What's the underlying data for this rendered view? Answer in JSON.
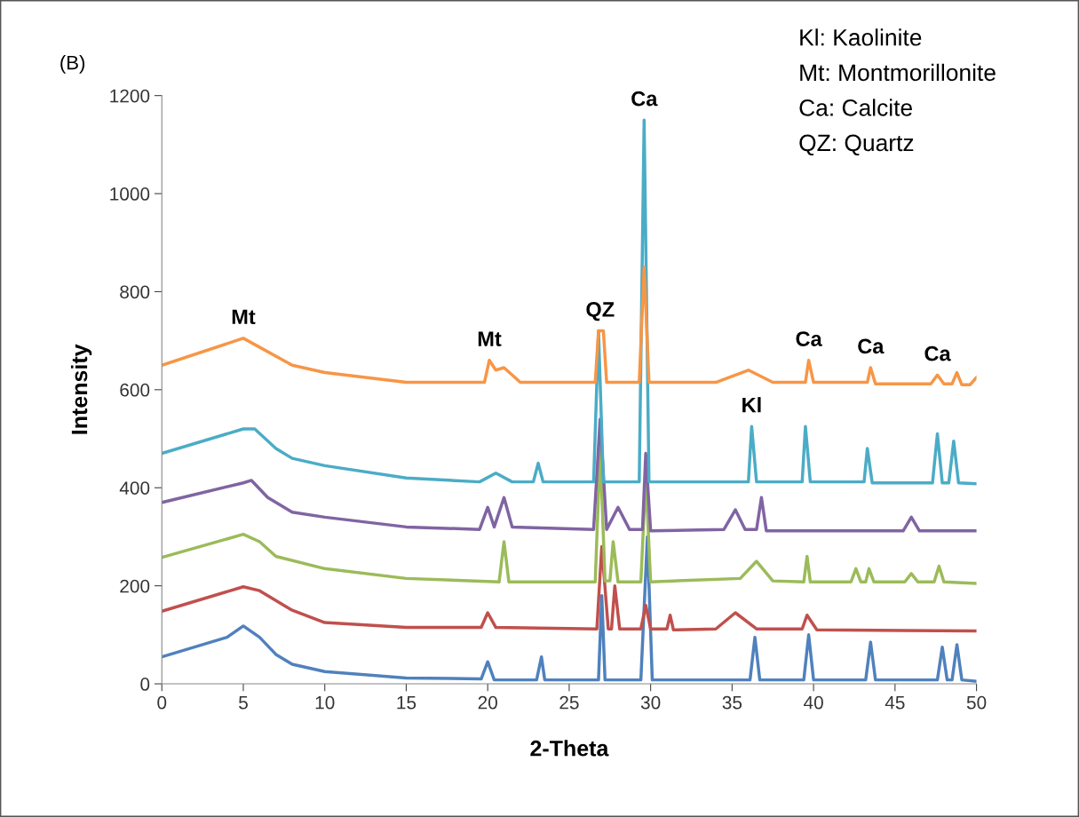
{
  "chart_data": {
    "type": "line",
    "xlabel": "2-Theta",
    "ylabel": "Intensity",
    "xlim": [
      0,
      50
    ],
    "ylim": [
      0,
      1200
    ],
    "xticks": [
      0,
      5,
      10,
      15,
      20,
      25,
      30,
      35,
      40,
      45,
      50
    ],
    "yticks": [
      0,
      200,
      400,
      600,
      800,
      1000,
      1200
    ],
    "grid": false,
    "legend": false,
    "marker": "none",
    "line_style": "solid",
    "series": [
      {
        "color": "#4f81bd",
        "x": [
          0,
          4,
          5,
          6,
          7,
          8,
          10,
          15,
          19.6,
          20,
          20.4,
          23,
          23.3,
          23.5,
          26.8,
          27,
          27.2,
          29.4,
          29.8,
          30.1,
          36.1,
          36.4,
          36.7,
          39.4,
          39.7,
          40,
          43.2,
          43.5,
          43.8,
          47.6,
          47.9,
          48.2,
          48.5,
          48.8,
          49.1,
          50
        ],
        "values": [
          55,
          95,
          118,
          95,
          60,
          40,
          25,
          12,
          10,
          45,
          8,
          8,
          55,
          8,
          8,
          180,
          8,
          8,
          300,
          8,
          8,
          95,
          8,
          8,
          100,
          8,
          8,
          85,
          8,
          8,
          75,
          8,
          8,
          80,
          8,
          5
        ]
      },
      {
        "color": "#c0504d",
        "x": [
          0,
          5,
          6,
          8,
          10,
          15,
          19.6,
          20,
          20.5,
          26.7,
          27,
          27.4,
          27.6,
          27.8,
          28.1,
          29.4,
          29.7,
          30,
          31,
          31.2,
          31.4,
          34,
          35.2,
          36.5,
          39.3,
          39.6,
          40.2,
          50
        ],
        "values": [
          148,
          198,
          190,
          150,
          125,
          115,
          115,
          145,
          115,
          112,
          280,
          112,
          112,
          200,
          112,
          112,
          160,
          112,
          112,
          140,
          110,
          112,
          145,
          112,
          112,
          140,
          110,
          108
        ]
      },
      {
        "color": "#9bbb59",
        "x": [
          0,
          5,
          6,
          7,
          10,
          15,
          20.7,
          21,
          21.3,
          26.6,
          26.9,
          27.2,
          27.5,
          27.7,
          28,
          29.4,
          29.7,
          30,
          35.5,
          36.5,
          37.5,
          39.4,
          39.6,
          39.8,
          42.3,
          42.6,
          42.9,
          43.2,
          43.4,
          43.7,
          45.6,
          46,
          46.4,
          47.4,
          47.7,
          48,
          50
        ],
        "values": [
          258,
          305,
          290,
          260,
          235,
          215,
          208,
          290,
          208,
          208,
          480,
          210,
          210,
          290,
          208,
          208,
          420,
          208,
          215,
          250,
          210,
          208,
          260,
          208,
          208,
          235,
          208,
          208,
          235,
          208,
          208,
          225,
          208,
          208,
          240,
          208,
          205
        ]
      },
      {
        "color": "#8064a2",
        "x": [
          0,
          5,
          5.5,
          6.5,
          8,
          10,
          15,
          19.5,
          20,
          20.4,
          21,
          21.5,
          26.5,
          26.9,
          27.3,
          28,
          28.7,
          29.5,
          29.7,
          30,
          34.5,
          35.2,
          35.8,
          36.5,
          36.8,
          37.1,
          45.5,
          46,
          46.5,
          50
        ],
        "values": [
          370,
          410,
          415,
          380,
          350,
          340,
          320,
          315,
          360,
          320,
          380,
          320,
          315,
          540,
          315,
          360,
          315,
          315,
          470,
          312,
          315,
          355,
          315,
          315,
          380,
          312,
          312,
          340,
          312,
          312
        ]
      },
      {
        "color": "#4bacc6",
        "x": [
          0,
          5,
          5.7,
          7,
          8,
          10,
          15,
          19.5,
          20.5,
          21.5,
          22.8,
          23.1,
          23.4,
          26.5,
          26.8,
          27.1,
          29.3,
          29.6,
          29.9,
          36,
          36.2,
          36.5,
          39.3,
          39.5,
          39.8,
          43.1,
          43.3,
          43.6,
          47.3,
          47.6,
          47.9,
          48.3,
          48.6,
          48.9,
          50
        ],
        "values": [
          470,
          520,
          520,
          480,
          460,
          445,
          420,
          412,
          430,
          412,
          412,
          450,
          412,
          412,
          720,
          412,
          412,
          1150,
          412,
          412,
          525,
          412,
          412,
          525,
          412,
          412,
          480,
          410,
          410,
          510,
          410,
          410,
          495,
          410,
          408
        ]
      },
      {
        "color": "#f79646",
        "x": [
          0,
          5,
          8,
          10,
          15,
          19.8,
          20.1,
          20.5,
          21,
          22,
          26.6,
          26.8,
          27.1,
          27.3,
          29.3,
          29.6,
          29.9,
          34,
          36,
          37.5,
          39.5,
          39.7,
          40,
          43.3,
          43.5,
          43.8,
          47.2,
          47.6,
          48,
          48.5,
          48.8,
          49.1,
          49.6,
          50
        ],
        "values": [
          650,
          705,
          650,
          635,
          615,
          615,
          660,
          640,
          645,
          615,
          615,
          720,
          720,
          615,
          615,
          850,
          615,
          615,
          640,
          615,
          615,
          660,
          615,
          615,
          645,
          612,
          612,
          630,
          612,
          612,
          635,
          610,
          610,
          625
        ]
      }
    ],
    "annotations": [
      "(B)",
      "Kl: Kaolinite",
      "Mt: Montmorillonite",
      "Ca: Calcite",
      "QZ: Quartz",
      {
        "text": "Mt",
        "x": 5,
        "y": 705
      },
      {
        "text": "Mt",
        "x": 20.1,
        "y": 660
      },
      {
        "text": "QZ",
        "x": 26.9,
        "y": 720
      },
      {
        "text": "Ca",
        "x": 29.6,
        "y": 1150
      },
      {
        "text": "Kl",
        "x": 36.2,
        "y": 525
      },
      {
        "text": "Ca",
        "x": 39.7,
        "y": 660
      },
      {
        "text": "Ca",
        "x": 43.5,
        "y": 645
      },
      {
        "text": "Ca",
        "x": 47.6,
        "y": 630
      }
    ]
  }
}
